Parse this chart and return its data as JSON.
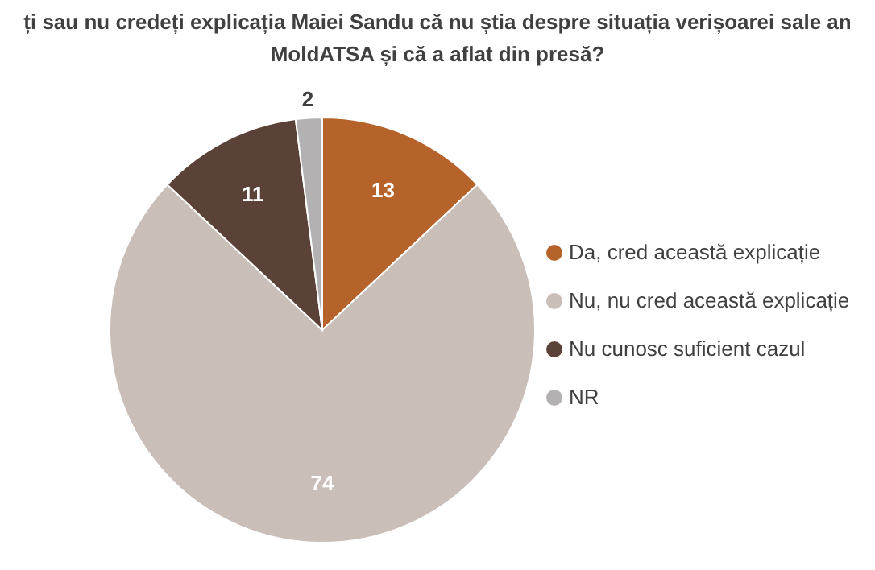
{
  "chart_data": {
    "type": "pie",
    "title": "ți sau nu credeți explicația Maiei Sandu că nu știa despre situația verișoarei sale an MoldATSA și că a aflat din presă?",
    "categories": [
      "Da, cred această explicație",
      "Nu, nu cred această explicație",
      "Nu cunosc suficient cazul",
      "NR"
    ],
    "values": [
      13,
      74,
      11,
      2
    ],
    "colors": [
      "#b5632a",
      "#c9beb8",
      "#5b4238",
      "#b3b1b1"
    ],
    "data_labels": true,
    "legend": "right"
  }
}
